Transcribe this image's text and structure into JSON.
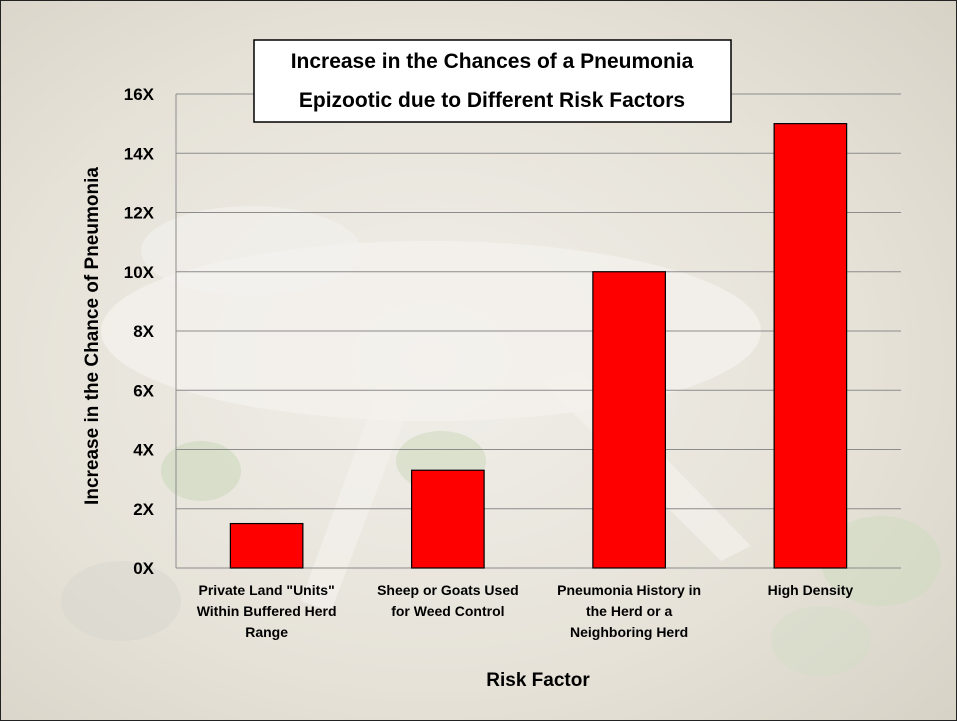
{
  "chart_data": {
    "type": "bar",
    "title_lines": [
      "Increase in the Chances of a Pneumonia",
      "Epizootic due to Different Risk Factors"
    ],
    "xlabel": "Risk Factor",
    "ylabel": "Increase in the Chance of Pneumonia",
    "categories": [
      "Private Land \"Units\" Within Buffered Herd Range",
      "Sheep or Goats Used for Weed Control",
      "Pneumonia History in the Herd or a Neighboring Herd",
      "High Density"
    ],
    "category_label_lines": [
      [
        "Private Land \"Units\"",
        "Within Buffered Herd",
        "Range"
      ],
      [
        "Sheep or Goats Used",
        "for Weed Control"
      ],
      [
        "Pneumonia History in",
        "the Herd or a",
        "Neighboring Herd"
      ],
      [
        "High Density"
      ]
    ],
    "values": [
      1.5,
      3.3,
      10,
      15
    ],
    "ylim": [
      0,
      16
    ],
    "yticks": [
      0,
      2,
      4,
      6,
      8,
      10,
      12,
      14,
      16
    ],
    "ytick_labels": [
      "0X",
      "2X",
      "4X",
      "6X",
      "8X",
      "10X",
      "12X",
      "14X",
      "16X"
    ],
    "grid": true,
    "legend": "none",
    "colors": {
      "bar_fill": "#ff0000",
      "bar_stroke": "#000000",
      "grid": "#8c8c8c",
      "title_box_fill": "#ffffff",
      "title_box_stroke": "#000000"
    }
  }
}
